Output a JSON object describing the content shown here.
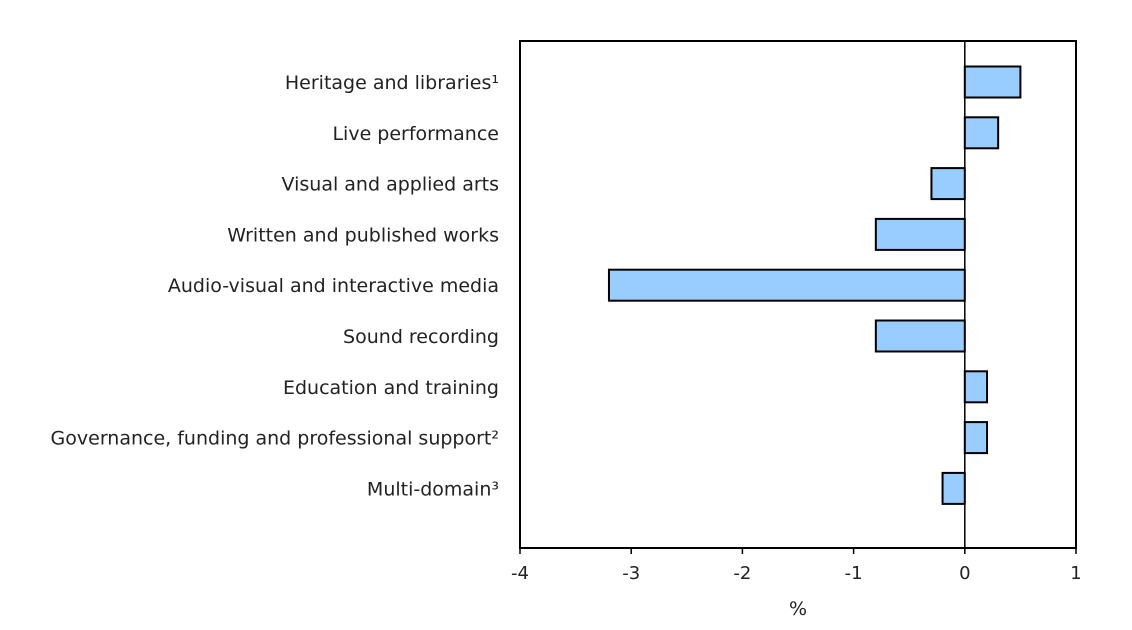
{
  "chart_data": {
    "type": "bar",
    "orientation": "horizontal",
    "categories": [
      "Heritage and libraries¹",
      "Live performance",
      "Visual and applied arts",
      "Written and published works",
      "Audio-visual and interactive media",
      "Sound recording",
      "Education and training",
      "Governance, funding and professional support²",
      "Multi-domain³"
    ],
    "values": [
      0.5,
      0.3,
      -0.3,
      -0.8,
      -3.2,
      -0.8,
      0.2,
      0.2,
      -0.2
    ],
    "xlabel": "%",
    "xlim": [
      -4,
      1
    ],
    "xticks": [
      -4,
      -3,
      -2,
      -1,
      0,
      1
    ],
    "xtick_labels": [
      "-4",
      "-3",
      "-2",
      "-1",
      "0",
      "1"
    ],
    "grid": false,
    "legend": "none",
    "colors": {
      "bar_fill": "#99ccff",
      "bar_stroke": "#000000",
      "axis": "#000000"
    }
  }
}
